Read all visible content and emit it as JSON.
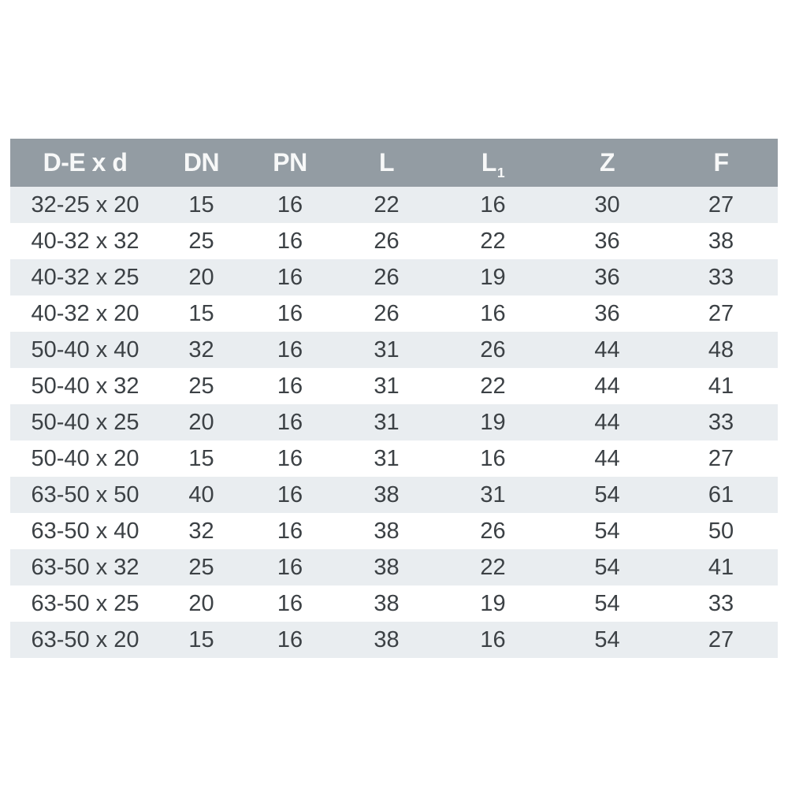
{
  "colors": {
    "header_bg": "#939CA3",
    "header_text": "#F7F8F8",
    "row_bg": "#FFFFFF",
    "row_alt_bg": "#E9EDF0",
    "cell_text": "#3C4145"
  },
  "chart_data": {
    "type": "table",
    "title": "",
    "columns": [
      {
        "label": "D-E x d",
        "sub": ""
      },
      {
        "label": "DN",
        "sub": ""
      },
      {
        "label": "PN",
        "sub": ""
      },
      {
        "label": "L",
        "sub": ""
      },
      {
        "label": "L",
        "sub": "1"
      },
      {
        "label": "Z",
        "sub": ""
      },
      {
        "label": "F",
        "sub": ""
      }
    ],
    "rows": [
      [
        "32-25 x 20",
        "15",
        "16",
        "22",
        "16",
        "30",
        "27"
      ],
      [
        "40-32 x 32",
        "25",
        "16",
        "26",
        "22",
        "36",
        "38"
      ],
      [
        "40-32 x 25",
        "20",
        "16",
        "26",
        "19",
        "36",
        "33"
      ],
      [
        "40-32 x 20",
        "15",
        "16",
        "26",
        "16",
        "36",
        "27"
      ],
      [
        "50-40 x 40",
        "32",
        "16",
        "31",
        "26",
        "44",
        "48"
      ],
      [
        "50-40 x 32",
        "25",
        "16",
        "31",
        "22",
        "44",
        "41"
      ],
      [
        "50-40 x 25",
        "20",
        "16",
        "31",
        "19",
        "44",
        "33"
      ],
      [
        "50-40 x 20",
        "15",
        "16",
        "31",
        "16",
        "44",
        "27"
      ],
      [
        "63-50 x 50",
        "40",
        "16",
        "38",
        "31",
        "54",
        "61"
      ],
      [
        "63-50 x 40",
        "32",
        "16",
        "38",
        "26",
        "54",
        "50"
      ],
      [
        "63-50 x 32",
        "25",
        "16",
        "38",
        "22",
        "54",
        "41"
      ],
      [
        "63-50 x 25",
        "20",
        "16",
        "38",
        "19",
        "54",
        "33"
      ],
      [
        "63-50 x 20",
        "15",
        "16",
        "38",
        "16",
        "54",
        "27"
      ]
    ]
  }
}
